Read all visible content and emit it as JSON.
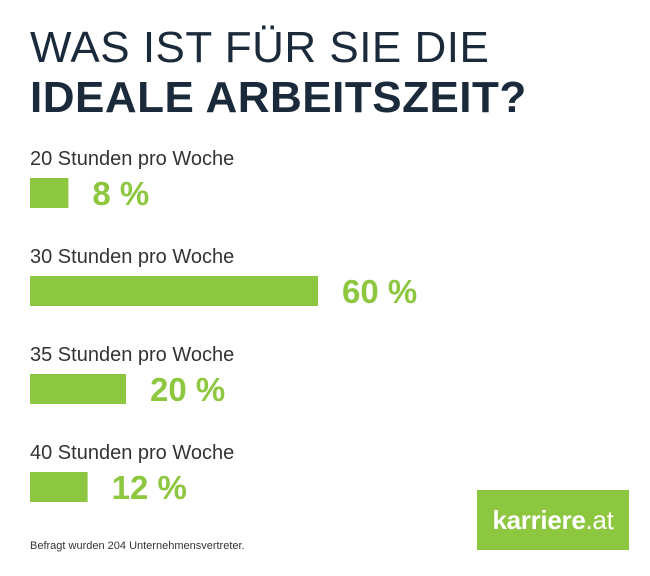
{
  "title_line1": "WAS IST FÜR SIE DIE",
  "title_line2": "IDEALE ARBEITSZEIT?",
  "footnote": "Befragt wurden 204 Unternehmensvertreter.",
  "logo": {
    "main": "karriere",
    "suffix": ".at"
  },
  "colors": {
    "bar": "#8dc63f",
    "label": "#8dc63f",
    "title": "#1a2a3a",
    "text": "#333333"
  },
  "chart_data": {
    "type": "bar",
    "orientation": "horizontal",
    "categories": [
      "20 Stunden pro Woche",
      "30 Stunden pro Woche",
      "35 Stunden pro Woche",
      "40 Stunden pro Woche"
    ],
    "values": [
      8,
      60,
      20,
      12
    ],
    "value_labels": [
      "8 %",
      "60 %",
      "20 %",
      "12 %"
    ],
    "unit": "%"
  }
}
